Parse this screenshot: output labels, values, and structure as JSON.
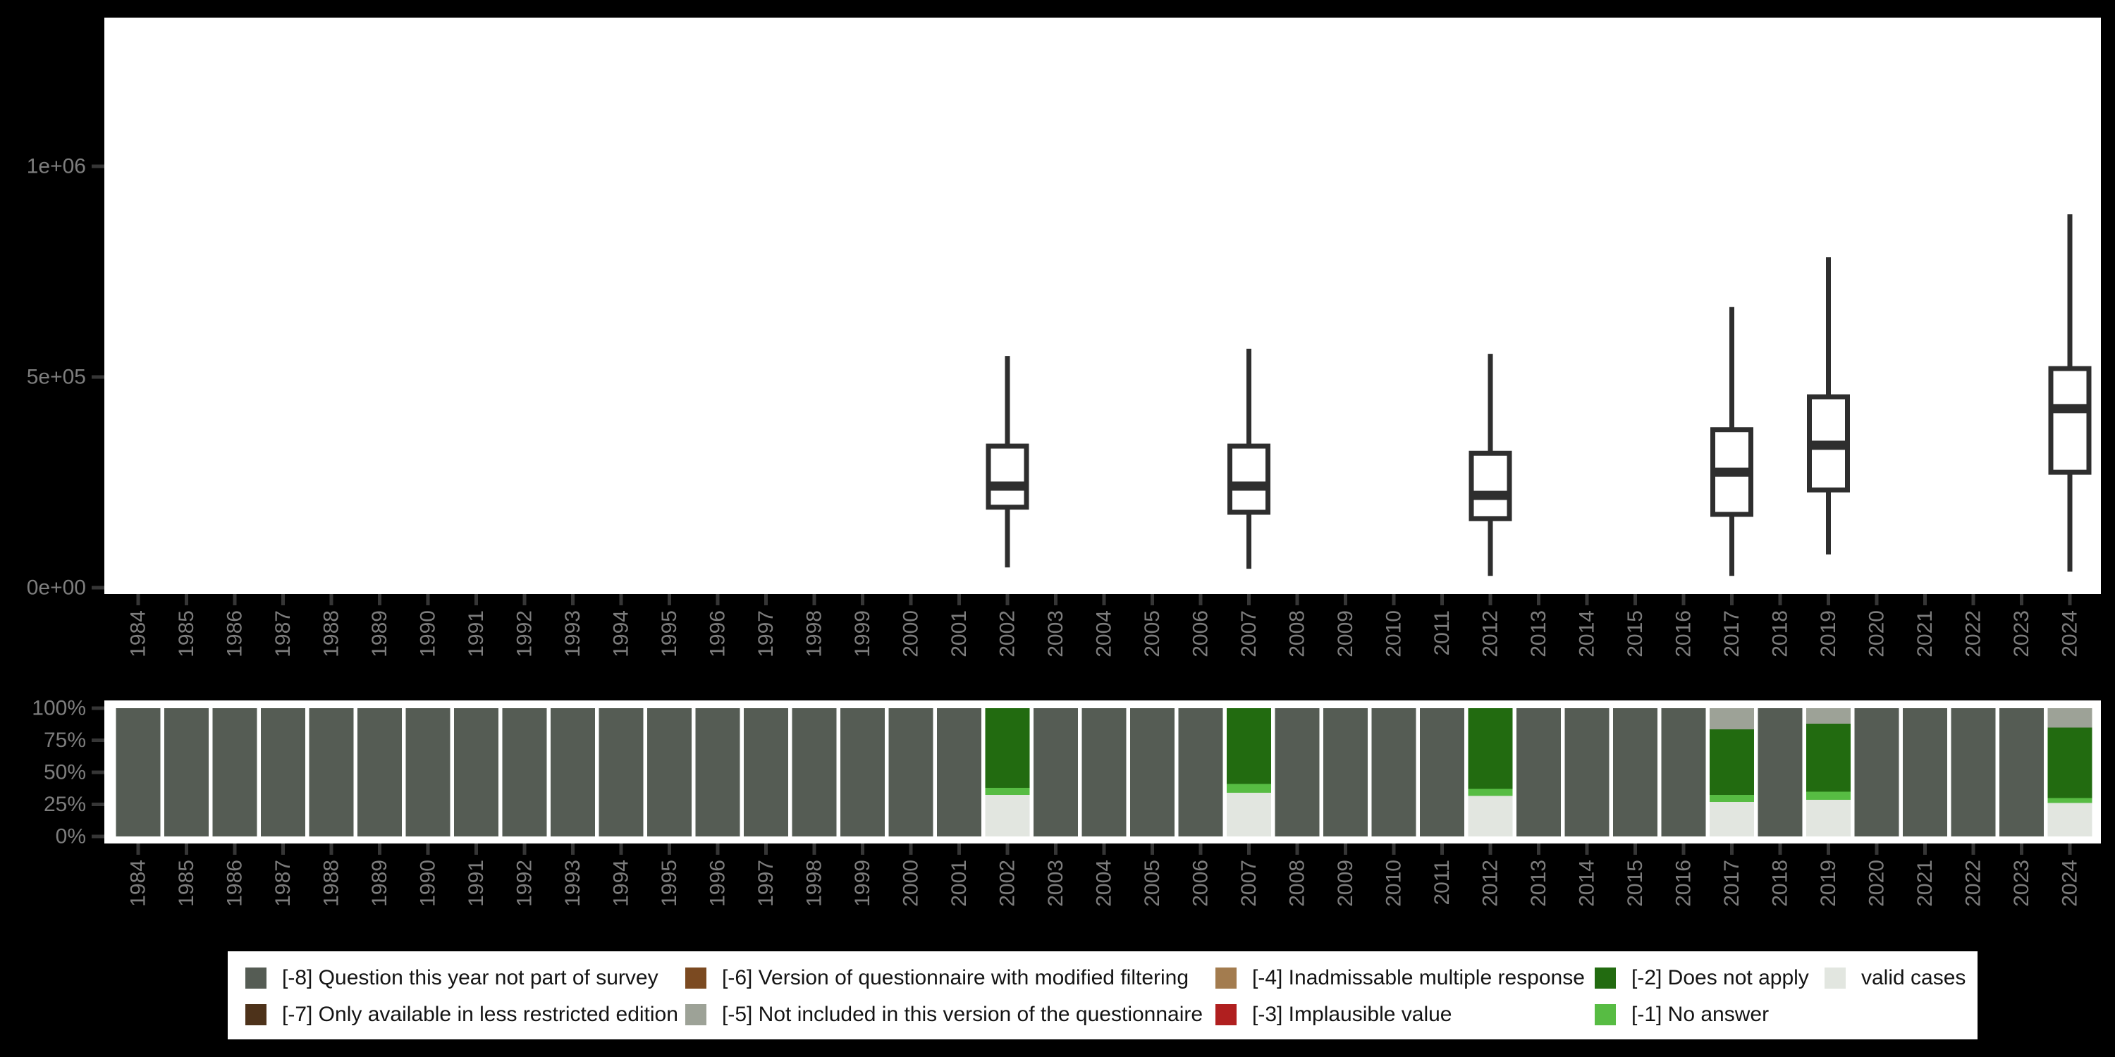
{
  "figure": {
    "background": "#000000",
    "panel_background": "#FFFFFF"
  },
  "colors": {
    "axis_text": "#7D7D7D",
    "tick": "#363636",
    "box_stroke": "#2E2E2E",
    "series": {
      "-8": "#555C54",
      "-7": "#4D321A",
      "-6": "#7B4A21",
      "-5": "#9DA297",
      "-4": "#A37C4F",
      "-3": "#B01F1F",
      "-2": "#226B10",
      "-1": "#57BC43",
      "valid": "#E2E6E0"
    }
  },
  "years": [
    1984,
    1985,
    1986,
    1987,
    1988,
    1989,
    1990,
    1991,
    1992,
    1993,
    1994,
    1995,
    1996,
    1997,
    1998,
    1999,
    2000,
    2001,
    2002,
    2003,
    2004,
    2005,
    2006,
    2007,
    2008,
    2009,
    2010,
    2011,
    2012,
    2013,
    2014,
    2015,
    2016,
    2017,
    2018,
    2019,
    2020,
    2021,
    2022,
    2023,
    2024
  ],
  "chart_data": [
    {
      "type": "boxplot",
      "title": "",
      "xlabel": "",
      "ylabel": "",
      "grid": "off",
      "y_ticks": [
        "0e+00",
        "5e+05",
        "1e+06"
      ],
      "y_tick_values": [
        0,
        500000,
        1000000
      ],
      "ylim": [
        0,
        1350000
      ],
      "boxes": [
        {
          "year": 2002,
          "min": 48000,
          "q1": 191000,
          "median": 241000,
          "q3": 336000,
          "max": 550000
        },
        {
          "year": 2007,
          "min": 45000,
          "q1": 179000,
          "median": 241000,
          "q3": 336000,
          "max": 567000
        },
        {
          "year": 2012,
          "min": 28000,
          "q1": 164000,
          "median": 219000,
          "q3": 319000,
          "max": 555000
        },
        {
          "year": 2017,
          "min": 28000,
          "q1": 174000,
          "median": 274000,
          "q3": 375000,
          "max": 666000
        },
        {
          "year": 2019,
          "min": 79000,
          "q1": 232000,
          "median": 338000,
          "q3": 453000,
          "max": 784000
        },
        {
          "year": 2024,
          "min": 38000,
          "q1": 274000,
          "median": 425000,
          "q3": 520000,
          "max": 886000
        }
      ]
    },
    {
      "type": "bar",
      "stacked_percent": true,
      "title": "",
      "xlabel": "",
      "ylabel": "",
      "grid": "off",
      "y_ticks": [
        "100%",
        "75%",
        "50%",
        "25%",
        "0%"
      ],
      "y_tick_values": [
        100,
        75,
        50,
        25,
        0
      ],
      "ylim": [
        0,
        100
      ],
      "stack_order_top_to_bottom": [
        "-8",
        "-7",
        "-6",
        "-5",
        "-4",
        "-3",
        "-2",
        "-1",
        "valid"
      ],
      "default_segments": {
        "-8": 100
      },
      "bars": {
        "2002": {
          "-2": 62,
          "-1": 5.5,
          "valid": 32.5
        },
        "2007": {
          "-2": 59,
          "-1": 7,
          "valid": 34
        },
        "2012": {
          "-2": 63,
          "-1": 5.5,
          "valid": 31.5
        },
        "2017": {
          "-5": 16.5,
          "-2": 51,
          "-1": 5.5,
          "valid": 27
        },
        "2019": {
          "-5": 12,
          "-2": 53,
          "-1": 6.5,
          "valid": 28.5
        },
        "2024": {
          "-5": 15,
          "-2": 55,
          "-1": 4,
          "valid": 26
        }
      }
    }
  ],
  "legend": {
    "position": "bottom",
    "items": [
      {
        "key": "-8",
        "label": "[-8] Question this year not part of survey"
      },
      {
        "key": "-7",
        "label": "[-7] Only available in less restricted edition"
      },
      {
        "key": "-6",
        "label": "[-6] Version of questionnaire with modified filtering"
      },
      {
        "key": "-5",
        "label": "[-5] Not included in this version of the questionnaire"
      },
      {
        "key": "-4",
        "label": "[-4] Inadmissable multiple response"
      },
      {
        "key": "-3",
        "label": "[-3] Implausible value"
      },
      {
        "key": "-2",
        "label": "[-2] Does not apply"
      },
      {
        "key": "-1",
        "label": "[-1] No answer"
      },
      {
        "key": "valid",
        "label": "valid cases"
      }
    ]
  }
}
